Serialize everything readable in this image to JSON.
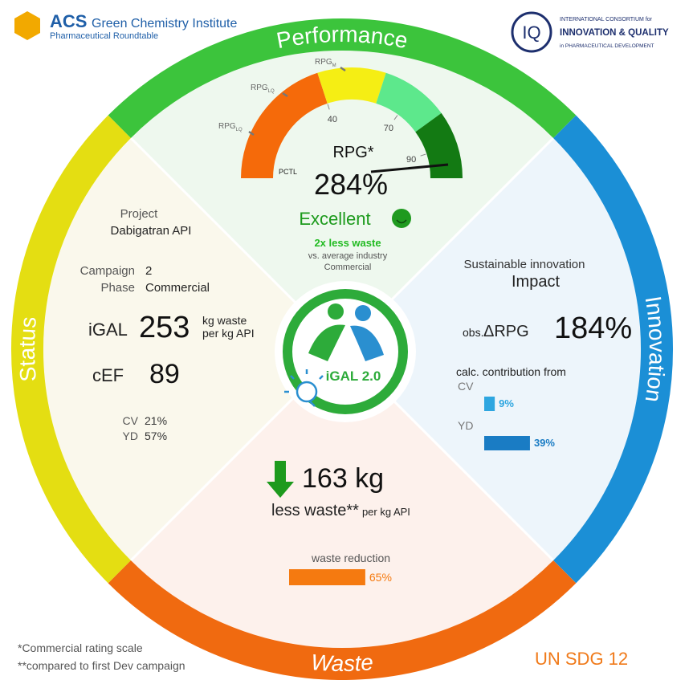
{
  "header": {
    "acs": {
      "name": "ACS",
      "title": "Green Chemistry Institute",
      "subtitle": "Pharmaceutical Roundtable"
    },
    "iq": {
      "mark": "IQ",
      "line1": "INTERNATIONAL CONSORTIUM for",
      "line2": "INNOVATION & QUALITY",
      "line3": "in PHARMACEUTICAL DEVELOPMENT"
    }
  },
  "ring": {
    "top": "Performance",
    "right": "Innovation",
    "bottom": "Waste",
    "left": "Status"
  },
  "performance": {
    "gauge": {
      "ticks": [
        40,
        70,
        90
      ],
      "markers": [
        {
          "name": "RPG",
          "sub": "LQ"
        },
        {
          "name": "RPG",
          "sub": "LQ"
        },
        {
          "name": "RPG",
          "sub": "M"
        }
      ],
      "pctl": "PCTL"
    },
    "metric": "RPG*",
    "value": "284%",
    "rating": "Excellent",
    "note": "2x less waste",
    "note2": "vs. average industry",
    "note3": "Commercial"
  },
  "status": {
    "project_label": "Project",
    "project": "Dabigatran API",
    "campaign_label": "Campaign",
    "campaign": "2",
    "phase_label": "Phase",
    "phase": "Commercial",
    "igal_label": "iGAL",
    "igal": "253",
    "igal_unit1": "kg waste",
    "igal_unit2": "per kg API",
    "cef_label": "cEF",
    "cef": "89",
    "cv_label": "CV",
    "cv": "21%",
    "yd_label": "YD",
    "yd": "57%"
  },
  "innovation": {
    "title": "Sustainable innovation",
    "subtitle": "Impact",
    "delta_label": "obs.",
    "delta_metric": "ΔRPG",
    "delta": "184%",
    "contrib": "calc. contribution from",
    "bars": [
      {
        "name": "CV",
        "value": 9,
        "label": "9%"
      },
      {
        "name": "YD",
        "value": 39,
        "label": "39%"
      }
    ]
  },
  "waste": {
    "amount": "163 kg",
    "label": "less waste**",
    "unit": "per kg API",
    "bar_title": "waste reduction",
    "bar": {
      "value": 65,
      "label": "65%"
    }
  },
  "center": "iGAL 2.0",
  "footer": {
    "note1": "*Commercial rating scale",
    "note2": "**compared to first Dev campaign",
    "sdg": "UN SDG 12"
  }
}
